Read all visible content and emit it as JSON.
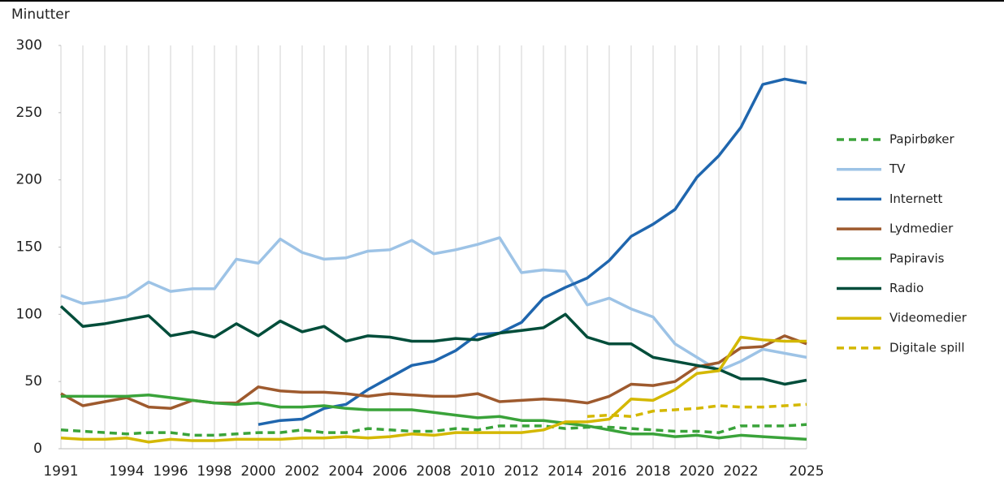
{
  "chart_data": {
    "type": "line",
    "y_label": "Minutter",
    "categories": [
      "1991",
      null,
      null,
      "1994",
      null,
      "1996",
      null,
      "1998",
      null,
      "2000",
      null,
      "2002",
      null,
      "2004",
      null,
      "2006",
      null,
      "2008",
      null,
      "2010",
      null,
      "2012",
      null,
      "2014",
      null,
      "2016",
      null,
      "2018",
      null,
      "2020",
      null,
      "2022",
      null,
      null,
      "2025"
    ],
    "ylim": [
      0,
      300
    ],
    "yticks": [
      0,
      50,
      100,
      150,
      200,
      250,
      300
    ],
    "grid": true,
    "legend": "right",
    "series": [
      {
        "name": "Papirbøker",
        "color": "#3aa33a",
        "dashed": true,
        "values": [
          14,
          13,
          12,
          11,
          12,
          12,
          10,
          10,
          11,
          12,
          12,
          14,
          12,
          12,
          15,
          14,
          13,
          13,
          15,
          14,
          17,
          17,
          17,
          15,
          16,
          16,
          15,
          14,
          13,
          13,
          12,
          17,
          17,
          17,
          18
        ]
      },
      {
        "name": "TV",
        "color": "#9dc3e6",
        "values": [
          114,
          108,
          110,
          113,
          124,
          117,
          119,
          119,
          141,
          138,
          156,
          146,
          141,
          142,
          147,
          148,
          155,
          145,
          148,
          152,
          157,
          131,
          133,
          132,
          107,
          112,
          104,
          98,
          78,
          68,
          58,
          65,
          74,
          71,
          68
        ]
      },
      {
        "name": "Internett",
        "color": "#1f66ae",
        "values": [
          null,
          null,
          null,
          null,
          null,
          null,
          null,
          null,
          null,
          18,
          21,
          22,
          30,
          33,
          44,
          53,
          62,
          65,
          73,
          85,
          86,
          94,
          112,
          120,
          127,
          140,
          158,
          167,
          178,
          202,
          218,
          239,
          271,
          275,
          272
        ]
      },
      {
        "name": "Lydmedier",
        "color": "#9e5a2e",
        "values": [
          41,
          32,
          35,
          38,
          31,
          30,
          36,
          34,
          34,
          46,
          43,
          42,
          42,
          41,
          39,
          41,
          40,
          39,
          39,
          41,
          35,
          36,
          37,
          36,
          34,
          39,
          48,
          47,
          50,
          61,
          64,
          75,
          76,
          84,
          78
        ]
      },
      {
        "name": "Papiravis",
        "color": "#3aa33a",
        "values": [
          39,
          39,
          39,
          39,
          40,
          38,
          36,
          34,
          33,
          34,
          31,
          31,
          32,
          30,
          29,
          29,
          29,
          27,
          25,
          23,
          24,
          21,
          21,
          19,
          17,
          14,
          11,
          11,
          9,
          10,
          8,
          10,
          9,
          8,
          7
        ]
      },
      {
        "name": "Radio",
        "color": "#004d3a",
        "values": [
          106,
          91,
          93,
          96,
          99,
          84,
          87,
          83,
          93,
          84,
          95,
          87,
          91,
          80,
          84,
          83,
          80,
          80,
          82,
          81,
          86,
          88,
          90,
          100,
          83,
          78,
          78,
          68,
          65,
          62,
          59,
          52,
          52,
          48,
          51
        ]
      },
      {
        "name": "Videomedier",
        "color": "#d4b800",
        "values": [
          8,
          7,
          7,
          8,
          5,
          7,
          6,
          6,
          7,
          7,
          7,
          8,
          8,
          9,
          8,
          9,
          11,
          10,
          12,
          12,
          12,
          12,
          14,
          20,
          20,
          22,
          37,
          36,
          44,
          56,
          58,
          83,
          81,
          80,
          80
        ]
      },
      {
        "name": "Digitale spill",
        "color": "#d4b800",
        "dashed": true,
        "values": [
          null,
          null,
          null,
          null,
          null,
          null,
          null,
          null,
          null,
          null,
          null,
          null,
          null,
          null,
          null,
          null,
          null,
          null,
          null,
          null,
          null,
          null,
          null,
          null,
          24,
          25,
          24,
          28,
          29,
          30,
          32,
          31,
          31,
          32,
          33
        ]
      }
    ]
  }
}
